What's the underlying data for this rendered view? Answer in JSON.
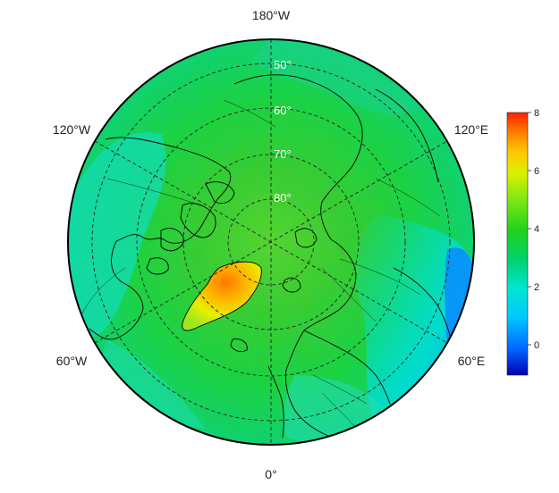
{
  "map": {
    "projection": "north-polar-stereographic",
    "longitude_labels": [
      "180°W",
      "120°W",
      "120°E",
      "60°W",
      "60°E",
      "0°"
    ],
    "latitude_labels": [
      "50°",
      "60°",
      "70°",
      "80°"
    ],
    "grid": true
  },
  "colorbar": {
    "ticks": [
      "8",
      "6",
      "4",
      "2",
      "0"
    ],
    "range": [
      -1,
      8
    ],
    "colors": [
      "#0000b4",
      "#0066ff",
      "#00c8ff",
      "#00e6d2",
      "#00d26e",
      "#1ed21e",
      "#78e614",
      "#dcf000",
      "#ffc800",
      "#ff7800",
      "#ff1e00"
    ]
  }
}
